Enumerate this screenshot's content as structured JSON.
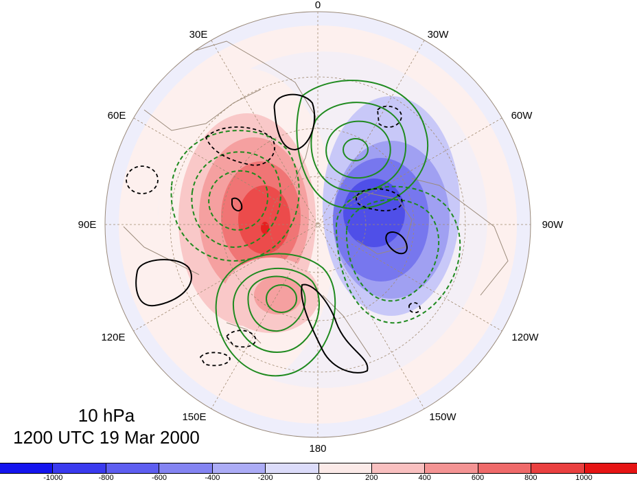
{
  "map": {
    "projection": "north polar stereographic",
    "longitude_labels": [
      "0",
      "30W",
      "60W",
      "90W",
      "120W",
      "150W",
      "180",
      "150E",
      "120E",
      "90E",
      "60E",
      "30E"
    ],
    "fill_colors": {
      "weak_positive": "#fdf0ee",
      "weak_negative": "#eeeefb",
      "pos_1": "#f9c8c8",
      "pos_2": "#f5a0a0",
      "pos_3": "#f07575",
      "pos_4": "#ec4b4b",
      "pos_5": "#e62020",
      "neg_1": "#c8c8f8",
      "neg_2": "#a0a0f2",
      "neg_3": "#7777ee",
      "neg_4": "#4f4fe8",
      "coast": "#9a8a7a",
      "contour_green": "#1f8a1f",
      "contour_black": "#000000"
    }
  },
  "title": {
    "level": "10 hPa",
    "time": "1200 UTC 19 Mar 2000"
  },
  "colorbar": {
    "colors": [
      "#1414ee",
      "#3a3aee",
      "#5e5ef0",
      "#8484f2",
      "#acacf6",
      "#dcdcfa",
      "#fbeae8",
      "#f9c0c0",
      "#f49494",
      "#ef6a6a",
      "#ea4040",
      "#e61414"
    ],
    "labels": [
      "-1000",
      "-800",
      "-600",
      "-400",
      "-200",
      "0",
      "200",
      "400",
      "600",
      "800",
      "1000"
    ]
  }
}
